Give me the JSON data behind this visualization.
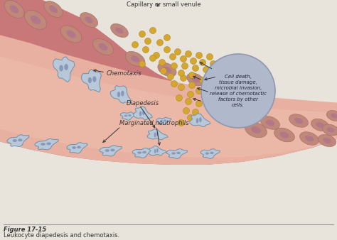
{
  "bg_color": "#ddd8cc",
  "page_color": "#e8e4dc",
  "vessel_outer_color": "#c87878",
  "vessel_mid_color": "#d48880",
  "vessel_inner_color": "#e8a090",
  "vessel_lumen_color": "#e8b0a0",
  "vessel_cell_color": "#c08878",
  "vessel_cell_edge": "#a06868",
  "vessel_nucleus_color": "#b07888",
  "cell_fill": "#b8c8d8",
  "cell_edge": "#7090a8",
  "nucleus_color": "#8898b8",
  "dot_color": "#d4a830",
  "dot_edge": "#b08820",
  "circle_fill": "#b0b8cc",
  "circle_edge": "#9098b0",
  "title": "Figure 17-15",
  "subtitle": "Leukocyte diapedesis and chemotaxis.",
  "label_capillary": "Capillary or small venule",
  "label_marginated": "Marginated neutrophils",
  "label_diapedesis": "Diapedesis",
  "label_chemotaxis": "Chemotaxis",
  "label_circle": "Cell death,\ntissue damage,\nmicrobial invasion,\nrelease of chemotactic\nfactors by other\ncells.",
  "fig_width": 4.74,
  "fig_height": 3.38,
  "dpi": 100
}
